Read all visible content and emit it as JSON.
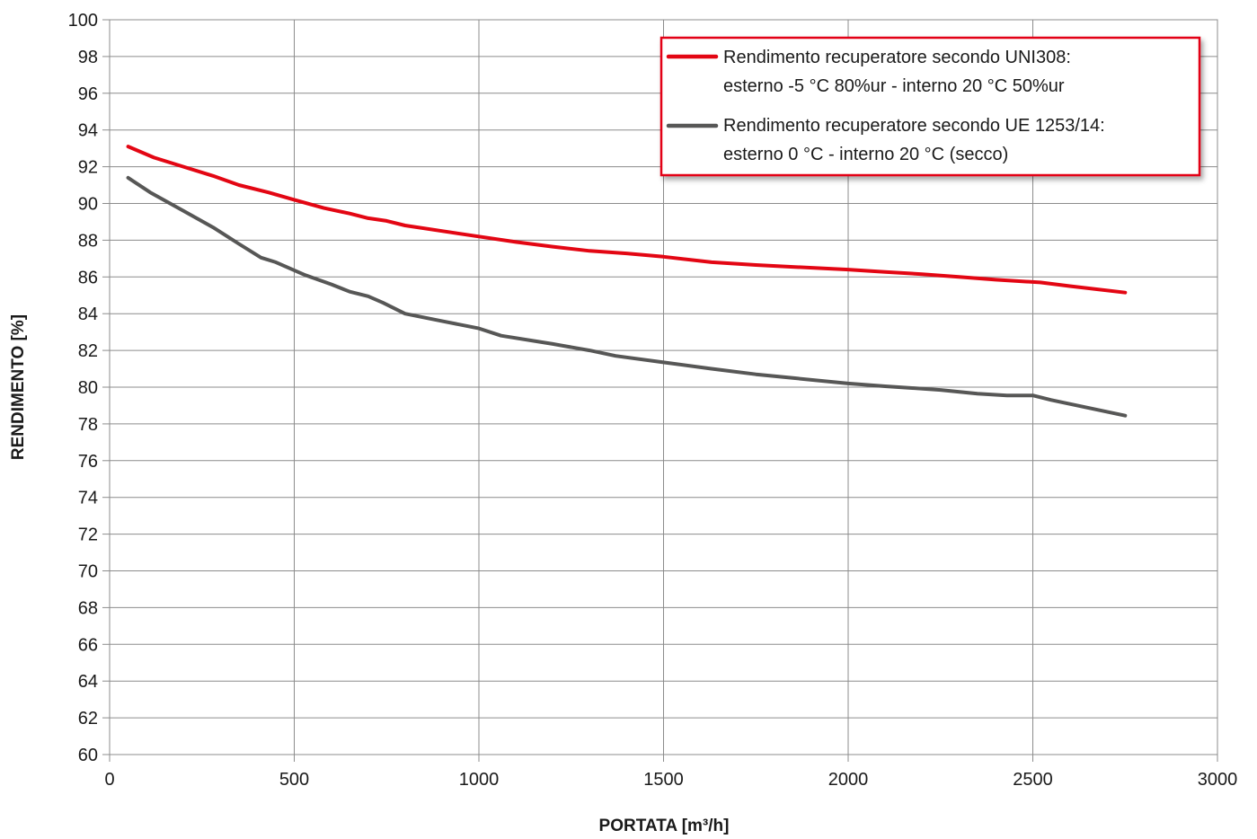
{
  "chart_data": {
    "type": "line",
    "title": "",
    "xlabel": "PORTATA [m³/h]",
    "ylabel": "RENDIMENTO [%]",
    "xlim": [
      0,
      3000
    ],
    "ylim": [
      60,
      100
    ],
    "x_ticks": [
      0,
      500,
      1000,
      1500,
      2000,
      2500,
      3000
    ],
    "y_ticks": [
      60,
      62,
      64,
      66,
      68,
      70,
      72,
      74,
      76,
      78,
      80,
      82,
      84,
      86,
      88,
      90,
      92,
      94,
      96,
      98,
      100
    ],
    "grid": true,
    "legend_position": "top-right",
    "series": [
      {
        "name_lines": [
          "Rendimento recuperatore secondo UNI308:",
          "esterno -5 °C 80%ur - interno 20 °C 50%ur"
        ],
        "color": "#e30613",
        "points": [
          [
            50,
            93.1
          ],
          [
            120,
            92.5
          ],
          [
            200,
            92.0
          ],
          [
            280,
            91.5
          ],
          [
            350,
            91.0
          ],
          [
            430,
            90.6
          ],
          [
            500,
            90.2
          ],
          [
            580,
            89.75
          ],
          [
            650,
            89.45
          ],
          [
            700,
            89.2
          ],
          [
            750,
            89.05
          ],
          [
            800,
            88.8
          ],
          [
            900,
            88.5
          ],
          [
            1000,
            88.2
          ],
          [
            1100,
            87.9
          ],
          [
            1200,
            87.65
          ],
          [
            1300,
            87.42
          ],
          [
            1400,
            87.28
          ],
          [
            1500,
            87.1
          ],
          [
            1630,
            86.8
          ],
          [
            1750,
            86.65
          ],
          [
            1850,
            86.55
          ],
          [
            2000,
            86.4
          ],
          [
            2100,
            86.27
          ],
          [
            2200,
            86.15
          ],
          [
            2300,
            86.0
          ],
          [
            2400,
            85.85
          ],
          [
            2520,
            85.7
          ],
          [
            2600,
            85.5
          ],
          [
            2750,
            85.15
          ]
        ]
      },
      {
        "name_lines": [
          "Rendimento recuperatore secondo UE 1253/14:",
          "esterno 0 °C - interno 20 °C (secco)"
        ],
        "color": "#575756",
        "points": [
          [
            50,
            91.4
          ],
          [
            110,
            90.6
          ],
          [
            200,
            89.6
          ],
          [
            280,
            88.7
          ],
          [
            350,
            87.8
          ],
          [
            410,
            87.05
          ],
          [
            450,
            86.8
          ],
          [
            530,
            86.1
          ],
          [
            600,
            85.6
          ],
          [
            650,
            85.2
          ],
          [
            700,
            84.95
          ],
          [
            740,
            84.6
          ],
          [
            800,
            84.0
          ],
          [
            900,
            83.6
          ],
          [
            1000,
            83.2
          ],
          [
            1060,
            82.8
          ],
          [
            1200,
            82.35
          ],
          [
            1300,
            82.0
          ],
          [
            1370,
            81.7
          ],
          [
            1500,
            81.35
          ],
          [
            1630,
            81.0
          ],
          [
            1750,
            80.7
          ],
          [
            1850,
            80.5
          ],
          [
            2000,
            80.2
          ],
          [
            2100,
            80.05
          ],
          [
            2250,
            79.85
          ],
          [
            2350,
            79.65
          ],
          [
            2430,
            79.55
          ],
          [
            2500,
            79.55
          ],
          [
            2550,
            79.3
          ],
          [
            2750,
            78.45
          ]
        ]
      }
    ]
  }
}
